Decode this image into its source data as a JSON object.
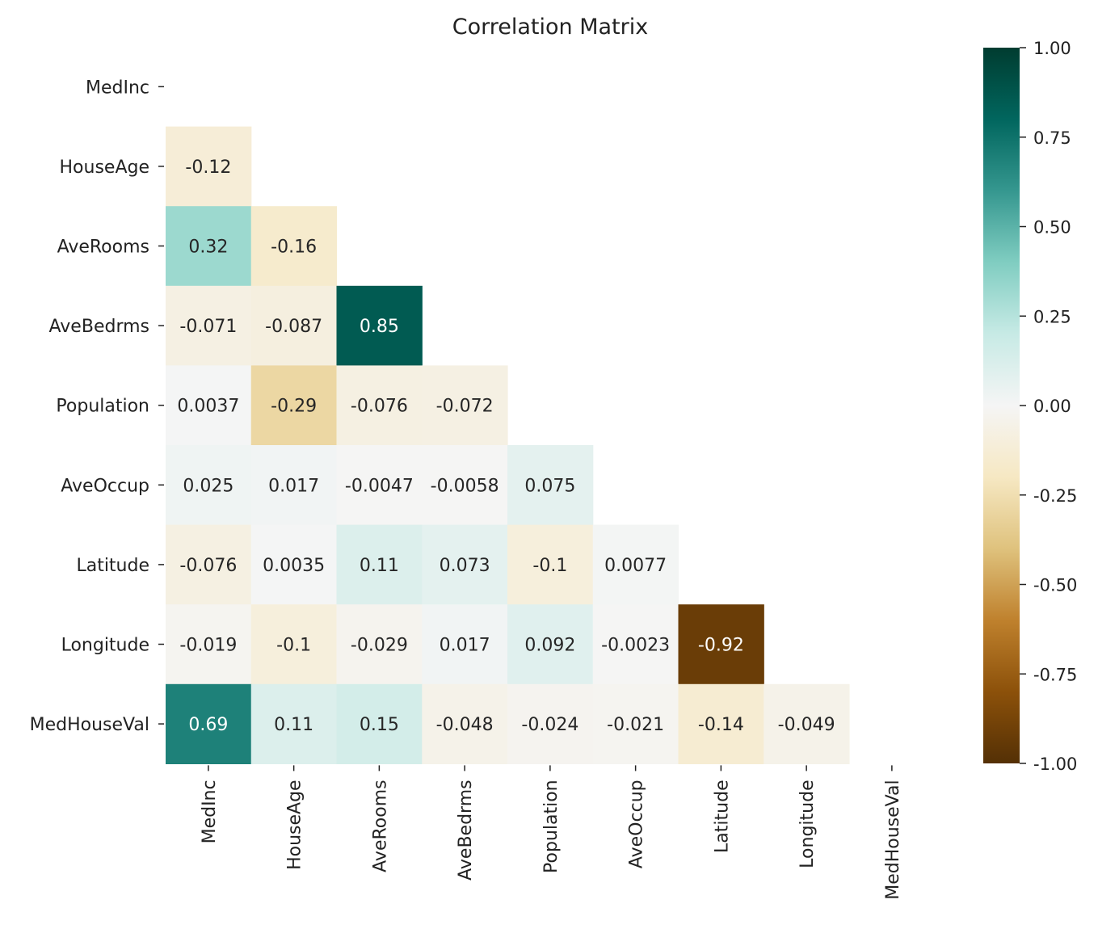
{
  "chart_data": {
    "type": "heatmap",
    "title": "Correlation Matrix",
    "xlabel": "",
    "ylabel": "",
    "variables": [
      "MedInc",
      "HouseAge",
      "AveRooms",
      "AveBedrms",
      "Population",
      "AveOccup",
      "Latitude",
      "Longitude",
      "MedHouseVal"
    ],
    "mask": "upper-triangle including diagonal",
    "cells": [
      [
        null,
        null,
        null,
        null,
        null,
        null,
        null,
        null,
        null
      ],
      [
        -0.12,
        null,
        null,
        null,
        null,
        null,
        null,
        null,
        null
      ],
      [
        0.32,
        -0.16,
        null,
        null,
        null,
        null,
        null,
        null,
        null
      ],
      [
        -0.071,
        -0.087,
        0.85,
        null,
        null,
        null,
        null,
        null,
        null
      ],
      [
        0.0037,
        -0.29,
        -0.076,
        -0.072,
        null,
        null,
        null,
        null,
        null
      ],
      [
        0.025,
        0.017,
        -0.0047,
        -0.0058,
        0.075,
        null,
        null,
        null,
        null
      ],
      [
        -0.076,
        0.0035,
        0.11,
        0.073,
        -0.1,
        0.0077,
        null,
        null,
        null
      ],
      [
        -0.019,
        -0.1,
        -0.029,
        0.017,
        0.092,
        -0.0023,
        -0.92,
        null,
        null
      ],
      [
        0.69,
        0.11,
        0.15,
        -0.048,
        -0.024,
        -0.021,
        -0.14,
        -0.049,
        null
      ]
    ],
    "annotations": [
      [
        null,
        null,
        null,
        null,
        null,
        null,
        null,
        null,
        null
      ],
      [
        "-0.12",
        null,
        null,
        null,
        null,
        null,
        null,
        null,
        null
      ],
      [
        "0.32",
        "-0.16",
        null,
        null,
        null,
        null,
        null,
        null,
        null
      ],
      [
        "-0.071",
        "-0.087",
        "0.85",
        null,
        null,
        null,
        null,
        null,
        null
      ],
      [
        "0.0037",
        "-0.29",
        "-0.076",
        "-0.072",
        null,
        null,
        null,
        null,
        null
      ],
      [
        "0.025",
        "0.017",
        "-0.0047",
        "-0.0058",
        "0.075",
        null,
        null,
        null,
        null
      ],
      [
        "-0.076",
        "0.0035",
        "0.11",
        "0.073",
        "-0.1",
        "0.0077",
        null,
        null,
        null
      ],
      [
        "-0.019",
        "-0.1",
        "-0.029",
        "0.017",
        "0.092",
        "-0.0023",
        "-0.92",
        null,
        null
      ],
      [
        "0.69",
        "0.11",
        "0.15",
        "-0.048",
        "-0.024",
        "-0.021",
        "-0.14",
        "-0.049",
        null
      ]
    ],
    "colorbar": {
      "colormap": "BrBG",
      "vmin": -1.0,
      "vmax": 1.0,
      "ticks": [
        1.0,
        0.75,
        0.5,
        0.25,
        0.0,
        -0.25,
        -0.5,
        -0.75,
        -1.0
      ],
      "tick_labels": [
        "1.00",
        "0.75",
        "0.50",
        "0.25",
        "0.00",
        "-0.25",
        "-0.50",
        "-0.75",
        "-1.00"
      ]
    },
    "grid": false,
    "legend": "colorbar at right"
  },
  "colors": {
    "text_dark": "#262626",
    "text_light": "#ffffff"
  }
}
